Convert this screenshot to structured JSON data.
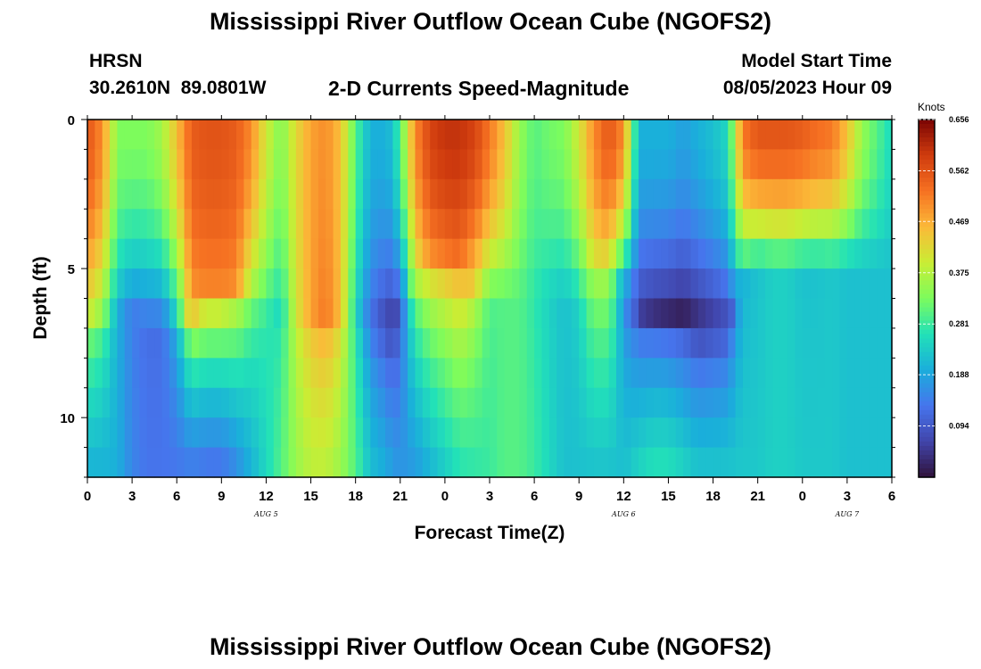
{
  "page": {
    "title": "Mississippi River Outflow Ocean Cube (NGOFS2)",
    "station": "HRSN",
    "coords": "30.2610N  89.0801W",
    "subtitle": "2-D Currents Speed-Magnitude",
    "model_start_label": "Model Start Time",
    "model_start_value": "08/05/2023 Hour 09",
    "bottom_title": "Mississippi River Outflow Ocean Cube (NGOFS2)"
  },
  "chart_data": {
    "type": "heatmap",
    "xlabel": "Forecast Time(Z)",
    "ylabel": "Depth (ft)",
    "x_range_hours": [
      0,
      54
    ],
    "y_range_ft": [
      0,
      12
    ],
    "y_ticks": [
      "0",
      "5",
      "10"
    ],
    "x_tick_labels": [
      "0",
      "3",
      "6",
      "9",
      "12",
      "15",
      "18",
      "21",
      "0",
      "3",
      "6",
      "9",
      "12",
      "15",
      "18",
      "21",
      "0",
      "3",
      "6"
    ],
    "date_labels": [
      {
        "text": "AUG 5",
        "hour": 12
      },
      {
        "text": "AUG 6",
        "hour": 36
      },
      {
        "text": "AUG 7",
        "hour": 51
      }
    ],
    "colorbar": {
      "unit": "Knots",
      "min": 0,
      "max": 0.656,
      "tick_labels": [
        "0.656",
        "0.562",
        "0.469",
        "0.375",
        "0.281",
        "0.188",
        "0.094"
      ],
      "tick_values": [
        0.656,
        0.562,
        0.469,
        0.375,
        0.281,
        0.188,
        0.094
      ]
    },
    "profile_x_hours": [
      0,
      1,
      2,
      3,
      4,
      5,
      6,
      7,
      8,
      9,
      10,
      11,
      12,
      13,
      14,
      15,
      16,
      17,
      18,
      19,
      20,
      20.5,
      21,
      22,
      23,
      24,
      25,
      26,
      27,
      28,
      29,
      30,
      31,
      32,
      33,
      34,
      35,
      36,
      37,
      38,
      39,
      40,
      41,
      42,
      43,
      44,
      45,
      46,
      47,
      48,
      49,
      50,
      51,
      52,
      53,
      54
    ],
    "surface_speed_knots": [
      0.56,
      0.5,
      0.33,
      0.33,
      0.33,
      0.36,
      0.45,
      0.55,
      0.56,
      0.56,
      0.55,
      0.5,
      0.4,
      0.33,
      0.42,
      0.48,
      0.5,
      0.45,
      0.3,
      0.2,
      0.2,
      0.22,
      0.3,
      0.5,
      0.58,
      0.6,
      0.6,
      0.58,
      0.52,
      0.45,
      0.35,
      0.3,
      0.32,
      0.33,
      0.4,
      0.5,
      0.56,
      0.5,
      0.2,
      0.2,
      0.2,
      0.18,
      0.2,
      0.22,
      0.25,
      0.52,
      0.56,
      0.56,
      0.56,
      0.55,
      0.53,
      0.52,
      0.45,
      0.35,
      0.3,
      0.25
    ],
    "bottom_speed_knots": [
      0.2,
      0.2,
      0.2,
      0.15,
      0.13,
      0.13,
      0.13,
      0.13,
      0.12,
      0.12,
      0.15,
      0.2,
      0.25,
      0.3,
      0.35,
      0.38,
      0.38,
      0.35,
      0.3,
      0.22,
      0.2,
      0.18,
      0.17,
      0.17,
      0.2,
      0.23,
      0.26,
      0.27,
      0.28,
      0.3,
      0.3,
      0.28,
      0.25,
      0.22,
      0.22,
      0.22,
      0.22,
      0.22,
      0.25,
      0.27,
      0.27,
      0.25,
      0.23,
      0.23,
      0.23,
      0.23,
      0.23,
      0.24,
      0.24,
      0.23,
      0.23,
      0.23,
      0.22,
      0.22,
      0.22,
      0.22
    ],
    "core_speed_knots": [
      0.4,
      0.35,
      0.2,
      0.14,
      0.12,
      0.12,
      0.22,
      0.48,
      0.5,
      0.5,
      0.5,
      0.35,
      0.28,
      0.25,
      0.4,
      0.48,
      0.52,
      0.45,
      0.25,
      0.12,
      0.06,
      0.04,
      0.08,
      0.38,
      0.48,
      0.5,
      0.52,
      0.4,
      0.3,
      0.3,
      0.3,
      0.27,
      0.24,
      0.22,
      0.25,
      0.4,
      0.4,
      0.14,
      0.06,
      0.04,
      0.03,
      0.02,
      0.02,
      0.04,
      0.06,
      0.2,
      0.22,
      0.24,
      0.24,
      0.22,
      0.22,
      0.23,
      0.22,
      0.22,
      0.22,
      0.22
    ],
    "core_depth_ft": [
      6.5,
      6.5,
      6.5,
      6.5,
      7,
      7,
      7,
      6.5,
      6,
      6,
      5.5,
      6,
      6.5,
      6.5,
      6.5,
      6.5,
      6.5,
      6.5,
      6.5,
      7,
      7,
      7,
      6.5,
      5.5,
      5,
      5,
      5,
      6,
      6,
      6,
      6,
      6,
      6,
      6,
      6,
      5,
      5,
      6,
      6.5,
      6.5,
      6.5,
      6.5,
      7,
      7,
      7,
      5.5,
      5,
      5,
      5,
      5,
      5,
      5,
      5,
      5,
      5,
      5
    ]
  }
}
